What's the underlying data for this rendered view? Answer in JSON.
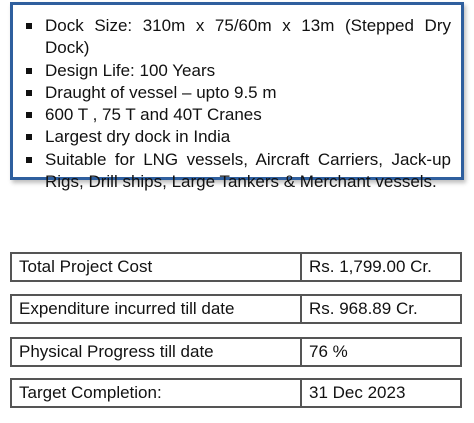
{
  "features": [
    "Dock Size: 310m x 75/60m x 13m (Stepped Dry Dock)",
    "Design Life: 100 Years",
    "Draught of vessel – upto 9.5 m",
    "600 T , 75 T and 40T Cranes",
    "Largest dry dock in India",
    "Suitable for LNG vessels, Aircraft Carriers, Jack-up Rigs, Drill ships, Large Tankers & Merchant vessels."
  ],
  "table": {
    "rows": [
      [
        "Total Project Cost",
        "Rs. 1,799.00 Cr."
      ],
      [
        "Expenditure incurred till date",
        "Rs. 968.89 Cr."
      ],
      [
        "Physical Progress till date",
        "76 %"
      ],
      [
        "Target Completion:",
        "31 Dec 2023"
      ]
    ]
  }
}
